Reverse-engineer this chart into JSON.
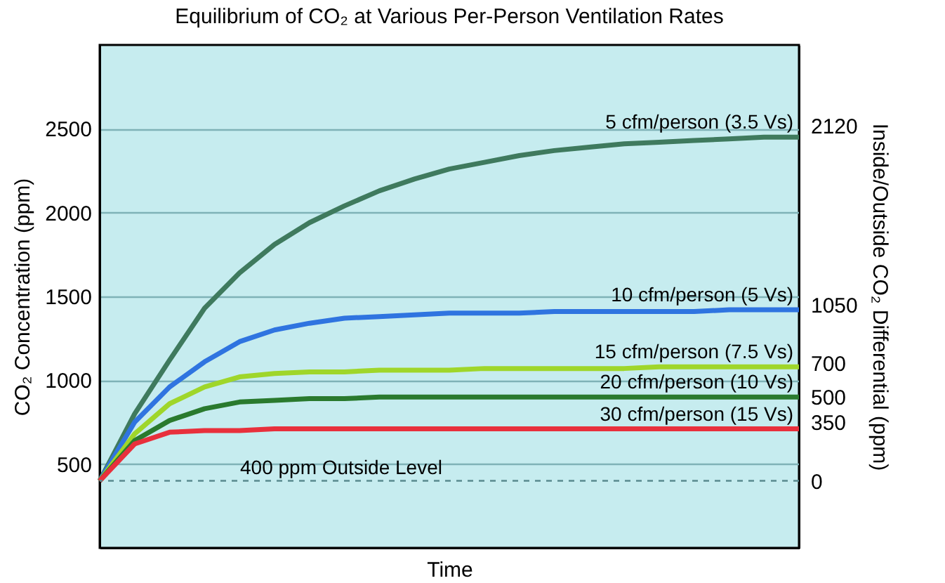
{
  "chart_data": {
    "type": "line",
    "title": "Equilibrium of CO₂ at Various Per-Person Ventilation Rates",
    "xlabel": "Time",
    "ylabel": "CO₂ Concentration (ppm)",
    "y2label": "Inside/Outside CO₂ Differential (ppm)",
    "categories": [
      null,
      null,
      null,
      null,
      null,
      null,
      null,
      null,
      null,
      null,
      null,
      null,
      null,
      null,
      null,
      null,
      null,
      null,
      null,
      null,
      null
    ],
    "series": [
      {
        "name": "5 cfm/person (3.5 Vs)",
        "color": "#3f7a5e",
        "values": [
          400,
          800,
          1120,
          1430,
          1640,
          1810,
          1940,
          2040,
          2130,
          2200,
          2260,
          2300,
          2340,
          2370,
          2390,
          2410,
          2420,
          2430,
          2440,
          2450,
          2450
        ]
      },
      {
        "name": "10 cfm/person (5 Vs)",
        "color": "#2f74e0",
        "values": [
          400,
          750,
          960,
          1110,
          1230,
          1300,
          1340,
          1370,
          1380,
          1390,
          1400,
          1400,
          1400,
          1410,
          1410,
          1410,
          1410,
          1410,
          1420,
          1420,
          1420
        ]
      },
      {
        "name": "15 cfm/person (7.5 Vs)",
        "color": "#9fd62a",
        "values": [
          400,
          680,
          860,
          960,
          1020,
          1040,
          1050,
          1050,
          1060,
          1060,
          1060,
          1070,
          1070,
          1070,
          1070,
          1070,
          1080,
          1080,
          1080,
          1080,
          1080
        ]
      },
      {
        "name": "20 cfm/person (10 Vs)",
        "color": "#2a7a2e",
        "values": [
          400,
          640,
          760,
          830,
          870,
          880,
          890,
          890,
          900,
          900,
          900,
          900,
          900,
          900,
          900,
          900,
          900,
          900,
          900,
          900,
          900
        ]
      },
      {
        "name": "30 cfm/person (15 Vs)",
        "color": "#e8303c",
        "values": [
          400,
          620,
          690,
          700,
          700,
          710,
          710,
          710,
          710,
          710,
          710,
          710,
          710,
          710,
          710,
          710,
          710,
          710,
          710,
          710,
          710
        ]
      }
    ],
    "ylim": [
      0,
      3000
    ],
    "yticks": [
      500,
      1000,
      1500,
      2000,
      2500
    ],
    "y2lim": [
      -400,
      2600
    ],
    "y2ticks": [
      0,
      350,
      500,
      700,
      1050,
      2120
    ],
    "ref_lines": [
      {
        "axis": "y",
        "value": 400,
        "label": "400 ppm Outside Level",
        "line_style": "dashed"
      }
    ],
    "grid": "y",
    "tick_labels": "y",
    "marker": "none",
    "line_style": "solid",
    "legend": false
  }
}
